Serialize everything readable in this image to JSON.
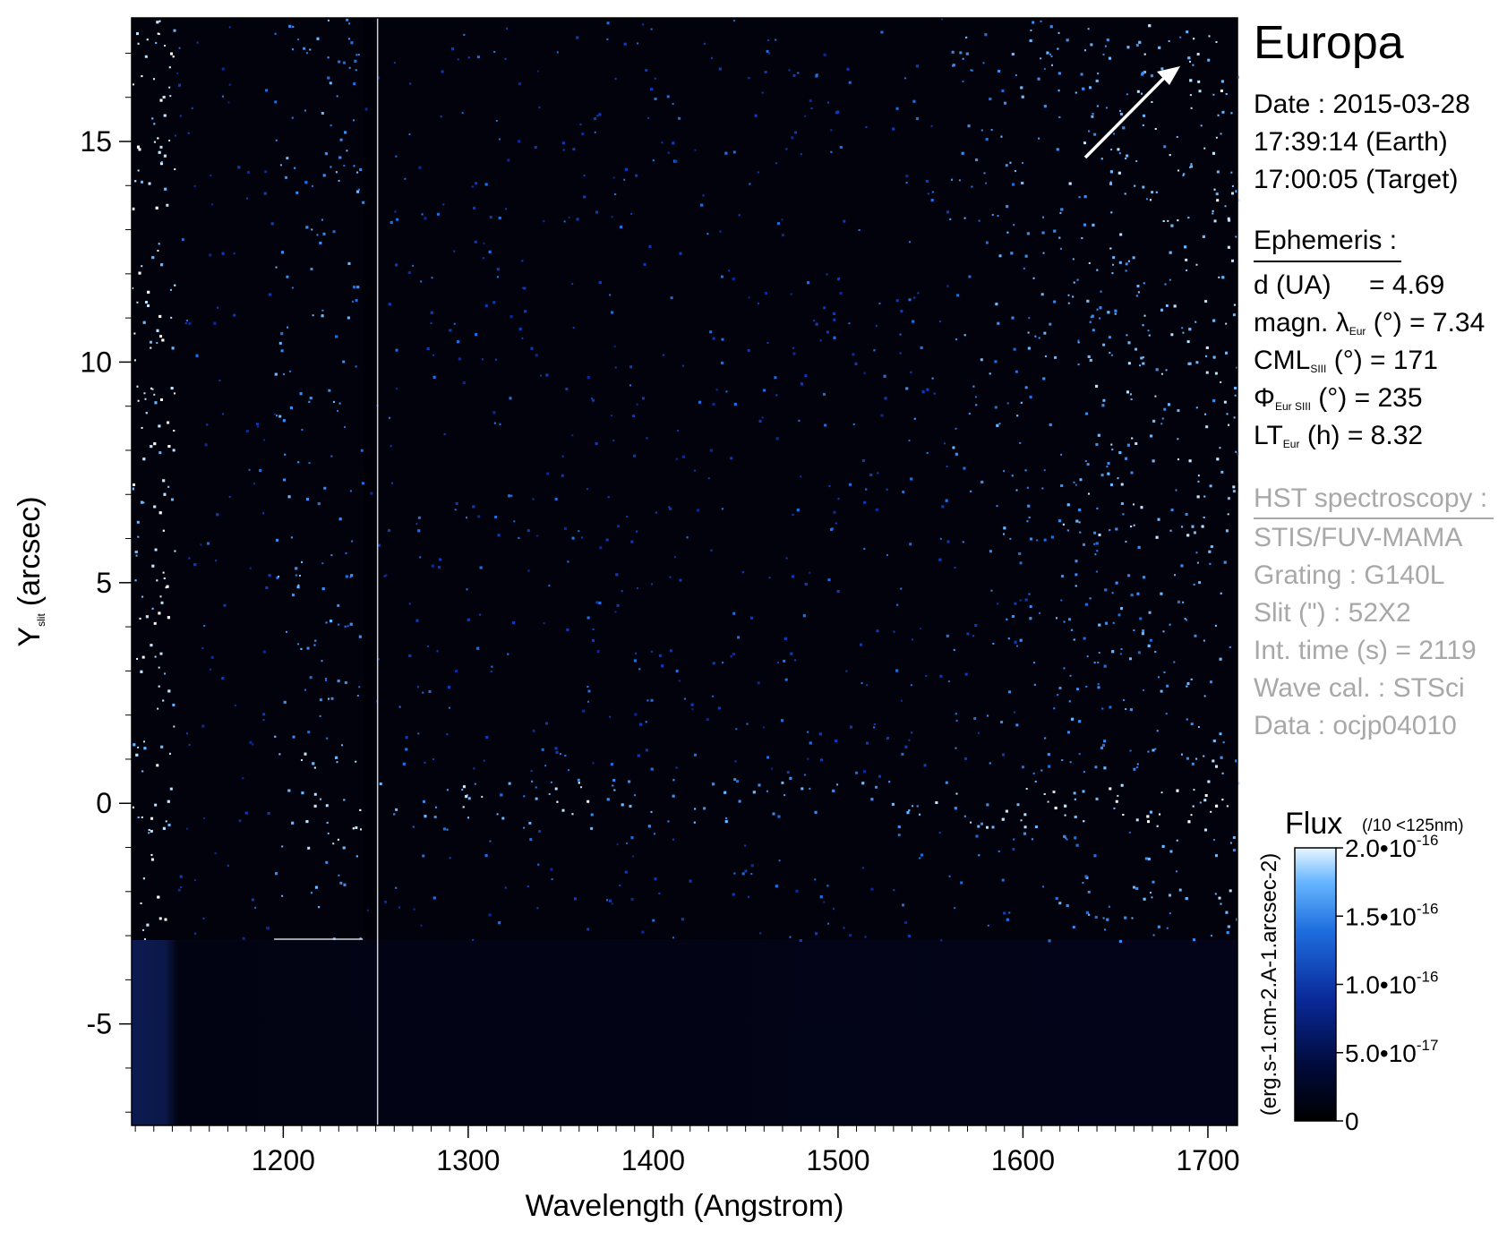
{
  "chart_data": {
    "type": "heatmap",
    "title": "Europa",
    "xlabel": "Wavelength (Angstrom)",
    "ylabel": "Y",
    "ylabel_sub": "slit",
    "ylabel_unit": "(arcsec)",
    "xlim": [
      1118,
      1716
    ],
    "ylim": [
      -7.3,
      17.8
    ],
    "x_ticks": [
      1200,
      1300,
      1400,
      1500,
      1600,
      1700
    ],
    "x_tick_labels": [
      "1200",
      "1300",
      "1400",
      "1500",
      "1600",
      "1700"
    ],
    "y_ticks": [
      -5,
      0,
      5,
      10,
      15
    ],
    "y_tick_labels": [
      "-5",
      "0",
      "5",
      "10",
      "15"
    ],
    "colorbar": {
      "title": "Flux",
      "note": "(/10 <125nm)",
      "unit_label": "(erg.s-1.cm-2.A-1.arcsec-2)",
      "range": [
        0,
        2e-16
      ],
      "ticks": [
        0,
        5e-17,
        1e-16,
        1.5e-16,
        2e-16
      ],
      "tick_labels": [
        {
          "base": "0",
          "exp": ""
        },
        {
          "base": "5.0•10",
          "exp": "-17"
        },
        {
          "base": "1.0•10",
          "exp": "-16"
        },
        {
          "base": "1.5•10",
          "exp": "-16"
        },
        {
          "base": "2.0•10",
          "exp": "-16"
        }
      ],
      "colormap": [
        "#000000",
        "#000a3a",
        "#0a2a9a",
        "#1f6fe0",
        "#6ab8ff",
        "#e8f6ff"
      ]
    },
    "features": {
      "vertical_line_x": 1251,
      "lyman_alpha_gap": [
        1195,
        1243
      ],
      "bright_band_y": 0,
      "emission_blobs_x": [
        1216,
        1304,
        1356,
        1560,
        1660
      ],
      "arrow_direction": "top-right"
    }
  },
  "info": {
    "date_line": "Date : 2015-03-28",
    "earth_time": "17:39:14 (Earth)",
    "target_time": "17:00:05 (Target)",
    "ephemeris_header": "Ephemeris :",
    "d_label": "d (UA)",
    "d_value": "= 4.69",
    "magn_prefix": "magn. λ",
    "magn_sub": "Eur",
    "magn_suffix": "(°)  = 7.34",
    "cml_prefix": "CML",
    "cml_sub": "SIII",
    "cml_suffix": "(°) = 171",
    "phi_prefix": "Φ",
    "phi_sub": "Eur SIII",
    "phi_suffix": "(°) = 235",
    "lt_prefix": "LT",
    "lt_sub": "Eur",
    "lt_suffix": "(h) = 8.32",
    "hst_header": "HST spectroscopy :",
    "instrument": "STIS/FUV-MAMA",
    "grating": "Grating : G140L",
    "slit": "Slit (\") : 52X2",
    "int_time": "Int. time (s) = 2119",
    "wave_cal": "Wave cal. : STSci",
    "data_id": "Data : ocjp04010"
  }
}
